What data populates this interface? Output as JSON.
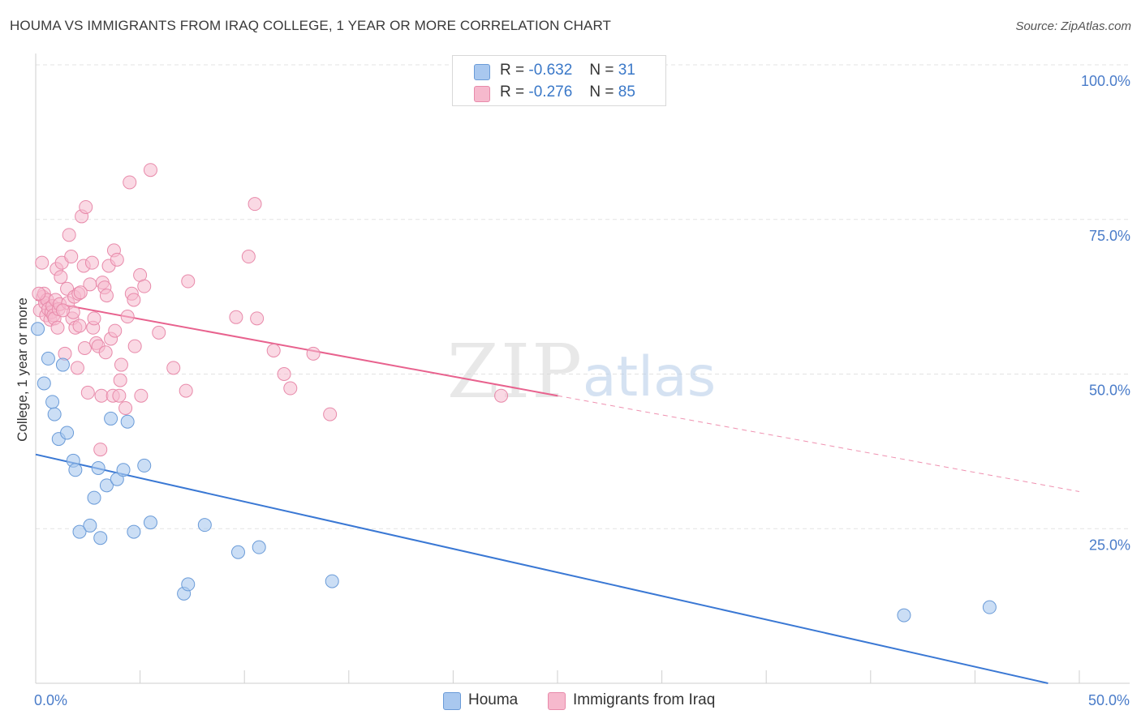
{
  "header": {
    "title": "HOUMA VS IMMIGRANTS FROM IRAQ COLLEGE, 1 YEAR OR MORE CORRELATION CHART",
    "source": "Source: ZipAtlas.com"
  },
  "watermark": {
    "zip": "ZIP",
    "atlas": "atlas"
  },
  "legend_top": {
    "rows": [
      {
        "r_label": "R =",
        "r_value": "-0.632",
        "n_label": "N =",
        "n_value": "31"
      },
      {
        "r_label": "R =",
        "r_value": "-0.276",
        "n_label": "N =",
        "n_value": "85"
      }
    ]
  },
  "legend_bottom": {
    "items": [
      "Houma",
      "Immigrants from Iraq"
    ]
  },
  "colors": {
    "houma_fill": "#a9c8ef",
    "houma_stroke": "#6a9bd8",
    "houma_line": "#3a78d4",
    "iraq_fill": "#f6b9cd",
    "iraq_stroke": "#e88aaa",
    "iraq_line": "#e8628e",
    "tick_label": "#4a7cc9",
    "grid": "#e3e3e3"
  },
  "chart_data": {
    "type": "scatter",
    "title": "HOUMA VS IMMIGRANTS FROM IRAQ COLLEGE, 1 YEAR OR MORE CORRELATION CHART",
    "xlabel": "",
    "ylabel": "College, 1 year or more",
    "xlim": [
      0,
      50
    ],
    "ylim": [
      0,
      100
    ],
    "x_ticks": [
      0,
      5,
      10,
      15,
      20,
      25,
      30,
      35,
      40,
      45,
      50
    ],
    "x_tick_labels": {
      "0": "0.0%",
      "50": "50.0%"
    },
    "y_ticks": [
      25,
      50,
      75,
      100
    ],
    "y_tick_labels": [
      "25.0%",
      "50.0%",
      "75.0%",
      "100.0%"
    ],
    "grid": true,
    "legend_position": "top-center",
    "series": [
      {
        "name": "Houma",
        "r": -0.632,
        "n": 31,
        "trend": {
          "x": [
            0,
            48.5
          ],
          "y": [
            37,
            0
          ]
        },
        "points": [
          [
            0.1,
            57.3
          ],
          [
            0.4,
            48.5
          ],
          [
            0.6,
            52.5
          ],
          [
            0.8,
            45.5
          ],
          [
            0.9,
            43.5
          ],
          [
            1.1,
            39.5
          ],
          [
            1.3,
            51.5
          ],
          [
            1.5,
            40.5
          ],
          [
            1.8,
            36
          ],
          [
            1.9,
            34.5
          ],
          [
            2.1,
            24.5
          ],
          [
            2.6,
            25.5
          ],
          [
            2.8,
            30
          ],
          [
            3.0,
            34.8
          ],
          [
            3.1,
            23.5
          ],
          [
            3.4,
            32
          ],
          [
            3.6,
            42.8
          ],
          [
            3.9,
            33
          ],
          [
            4.2,
            34.5
          ],
          [
            4.4,
            42.3
          ],
          [
            4.7,
            24.5
          ],
          [
            5.2,
            35.2
          ],
          [
            5.5,
            26
          ],
          [
            7.1,
            14.5
          ],
          [
            7.3,
            16
          ],
          [
            8.1,
            25.6
          ],
          [
            9.7,
            21.2
          ],
          [
            10.7,
            22
          ],
          [
            14.2,
            16.5
          ],
          [
            41.6,
            11
          ],
          [
            45.7,
            12.3
          ]
        ]
      },
      {
        "name": "Immigrants from Iraq",
        "r": -0.276,
        "n": 85,
        "trend": {
          "x": [
            0,
            25
          ],
          "y": [
            62,
            46.5
          ]
        },
        "trend_ext": {
          "x": [
            25,
            50
          ],
          "y": [
            46.5,
            31
          ]
        },
        "points": [
          [
            0.2,
            60.3
          ],
          [
            0.3,
            68
          ],
          [
            0.35,
            62.5
          ],
          [
            0.4,
            63
          ],
          [
            0.45,
            61.5
          ],
          [
            0.5,
            59.5
          ],
          [
            0.55,
            62
          ],
          [
            0.6,
            60.5
          ],
          [
            0.7,
            58.8
          ],
          [
            0.75,
            60
          ],
          [
            0.8,
            61
          ],
          [
            0.85,
            59.5
          ],
          [
            0.9,
            59
          ],
          [
            0.95,
            62
          ],
          [
            1.0,
            67
          ],
          [
            1.05,
            57.5
          ],
          [
            1.1,
            60.5
          ],
          [
            1.15,
            61.3
          ],
          [
            1.2,
            65.7
          ],
          [
            1.25,
            68
          ],
          [
            1.4,
            53.3
          ],
          [
            1.5,
            63.8
          ],
          [
            1.55,
            61.5
          ],
          [
            1.6,
            72.5
          ],
          [
            1.7,
            69
          ],
          [
            1.75,
            59
          ],
          [
            1.8,
            60
          ],
          [
            1.85,
            62.5
          ],
          [
            1.9,
            57.5
          ],
          [
            2.0,
            51
          ],
          [
            2.05,
            63
          ],
          [
            2.1,
            57.8
          ],
          [
            2.2,
            75.5
          ],
          [
            2.3,
            67.5
          ],
          [
            2.35,
            54.2
          ],
          [
            2.4,
            77
          ],
          [
            2.5,
            47
          ],
          [
            2.6,
            64.5
          ],
          [
            2.7,
            68
          ],
          [
            2.75,
            57.5
          ],
          [
            2.8,
            59
          ],
          [
            2.9,
            55
          ],
          [
            3.0,
            54.5
          ],
          [
            3.1,
            37.8
          ],
          [
            3.15,
            46.5
          ],
          [
            3.2,
            64.8
          ],
          [
            3.3,
            64
          ],
          [
            3.35,
            53.5
          ],
          [
            3.4,
            62.7
          ],
          [
            3.5,
            67.5
          ],
          [
            3.6,
            55.7
          ],
          [
            3.7,
            46.5
          ],
          [
            3.75,
            70
          ],
          [
            3.8,
            57
          ],
          [
            3.9,
            68.5
          ],
          [
            4.0,
            46.5
          ],
          [
            4.05,
            49
          ],
          [
            4.1,
            51.5
          ],
          [
            4.3,
            44.5
          ],
          [
            4.4,
            59.3
          ],
          [
            4.5,
            81
          ],
          [
            4.6,
            63
          ],
          [
            4.7,
            62
          ],
          [
            4.75,
            54.5
          ],
          [
            5.0,
            66
          ],
          [
            5.05,
            46.5
          ],
          [
            5.2,
            64.2
          ],
          [
            5.5,
            83
          ],
          [
            5.9,
            56.7
          ],
          [
            6.6,
            51
          ],
          [
            7.2,
            47.3
          ],
          [
            7.3,
            65
          ],
          [
            9.6,
            59.2
          ],
          [
            10.2,
            69
          ],
          [
            10.5,
            77.5
          ],
          [
            10.6,
            59
          ],
          [
            11.4,
            53.8
          ],
          [
            11.9,
            50
          ],
          [
            12.2,
            47.7
          ],
          [
            13.3,
            53.3
          ],
          [
            14.1,
            43.5
          ],
          [
            22.3,
            46.5
          ],
          [
            0.15,
            63
          ],
          [
            1.3,
            60.3
          ],
          [
            2.15,
            63.2
          ]
        ]
      }
    ]
  }
}
